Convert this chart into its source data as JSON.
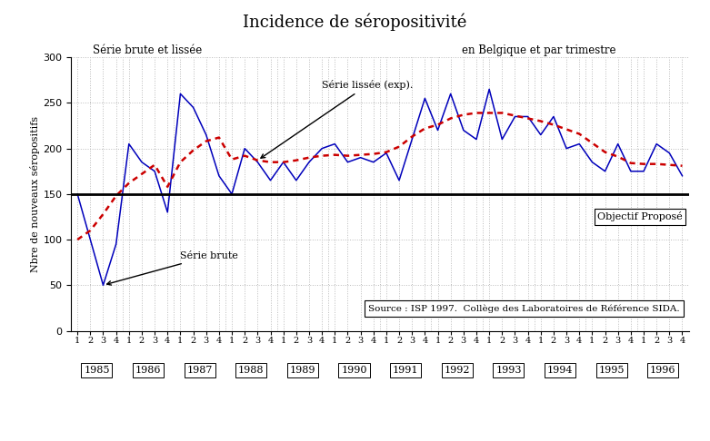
{
  "title": "Incidence de séropositivité",
  "subtitle_left": "Série brute et lissée",
  "subtitle_right": "en Belgique et par trimestre",
  "ylabel": "Nbre de nouveaux séropositifs",
  "source_text": "Source : ISP 1997.  Collège des Laboratoires de Référence SIDA.",
  "objectif_text": "Objectif Proposé",
  "serie_brute_label": "Série brute",
  "serie_lissee_label": "Série lissée (exp).",
  "objectif_line": 150,
  "ylim": [
    0,
    300
  ],
  "yticks": [
    0,
    50,
    100,
    150,
    200,
    250,
    300
  ],
  "years": [
    1985,
    1986,
    1987,
    1988,
    1989,
    1990,
    1991,
    1992,
    1993,
    1994,
    1995,
    1996
  ],
  "brute": [
    150,
    100,
    50,
    95,
    205,
    185,
    175,
    130,
    260,
    245,
    215,
    170,
    150,
    200,
    185,
    165,
    185,
    165,
    185,
    200,
    205,
    185,
    190,
    185,
    195,
    165,
    210,
    255,
    220,
    260,
    220,
    210,
    265,
    210,
    235,
    235,
    215,
    235,
    200,
    205,
    185,
    175,
    205,
    175,
    175,
    205,
    195,
    170
  ],
  "lissee": [
    100,
    110,
    128,
    148,
    162,
    172,
    182,
    158,
    185,
    198,
    208,
    212,
    188,
    192,
    187,
    185,
    185,
    187,
    190,
    192,
    193,
    192,
    193,
    194,
    196,
    202,
    213,
    222,
    226,
    233,
    237,
    239,
    239,
    239,
    236,
    233,
    230,
    226,
    221,
    216,
    206,
    196,
    191,
    184,
    183,
    183,
    182,
    181
  ],
  "brute_color": "#0000bb",
  "lissee_color": "#cc0000",
  "objectif_color": "#000000",
  "background_color": "#ffffff",
  "grid_color": "#bbbbbb"
}
